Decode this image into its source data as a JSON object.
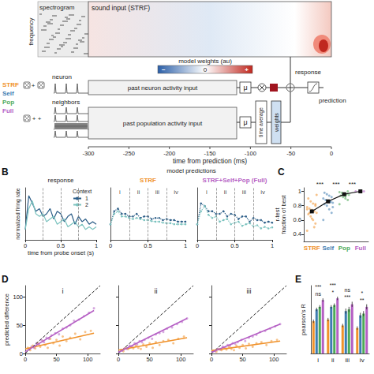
{
  "diagram": {
    "spectrogram": "spectrogram",
    "frequency": "frequency",
    "sound_input": "sound input (STRF)",
    "colorbar": {
      "title": "model weights (au)",
      "labels": [
        "−",
        "0",
        "+"
      ]
    },
    "models": [
      {
        "name": "STRF",
        "color": "#f0922b"
      },
      {
        "name": "Self",
        "color": "#3e7cb1"
      },
      {
        "name": "Pop",
        "color": "#4daa57"
      },
      {
        "name": "Full",
        "color": "#b55fc4"
      }
    ],
    "plus": "+",
    "neuron": "neuron",
    "neighbors": "neighbors",
    "neuron_input": "past neuron activity input",
    "population_input": "past population activity input",
    "mu": "μ",
    "time_average": "time average",
    "weights": "weights",
    "response": "response",
    "prediction": "prediction",
    "time_axis": {
      "title": "time from prediction (ms)",
      "lim": [
        -300,
        0
      ],
      "ticks": [
        -300,
        -250,
        -200,
        -150,
        -100,
        -50,
        0
      ]
    }
  },
  "chart_data": [
    {
      "type": "line",
      "panel": "B",
      "title": "response",
      "xlabel": "time from probe onset (s)",
      "ylabel": "normalized firing rate",
      "x": [
        0,
        0.05,
        0.1,
        0.15,
        0.2,
        0.25,
        0.3,
        0.35,
        0.4,
        0.45,
        0.5,
        0.55,
        0.6,
        0.65,
        0.7,
        0.75,
        0.8,
        0.85,
        0.9,
        0.95,
        1
      ],
      "series": [
        {
          "name": "1",
          "color": "#2b5d87",
          "values": [
            0.2,
            0.85,
            0.7,
            0.55,
            0.6,
            0.45,
            0.5,
            0.6,
            0.4,
            0.55,
            0.5,
            0.35,
            0.45,
            0.5,
            0.3,
            0.45,
            0.35,
            0.4,
            0.3,
            0.35,
            0.3
          ]
        },
        {
          "name": "2",
          "color": "#7cc3bf",
          "values": [
            0.2,
            0.6,
            0.75,
            0.5,
            0.45,
            0.5,
            0.35,
            0.4,
            0.45,
            0.3,
            0.35,
            0.4,
            0.25,
            0.3,
            0.35,
            0.25,
            0.3,
            0.2,
            0.25,
            0.2,
            0.25
          ]
        }
      ],
      "legend": "upper right",
      "legend_title": "Context",
      "segment_bounds": [
        0.25,
        0.5,
        0.75
      ],
      "xlim": [
        0,
        1
      ],
      "xticks": [
        0,
        0.5,
        1
      ],
      "ylim": [
        0,
        1
      ],
      "tick_labels": "x"
    },
    {
      "type": "line",
      "supertitle": "model predictions",
      "title": "STRF",
      "color": "#f0922b",
      "x": [
        0,
        0.05,
        0.1,
        0.15,
        0.2,
        0.25,
        0.3,
        0.35,
        0.4,
        0.45,
        0.5,
        0.55,
        0.6,
        0.65,
        0.7,
        0.75,
        0.8,
        0.85,
        0.9,
        0.95,
        1
      ],
      "series": [
        {
          "color": "#2b5d87",
          "line_style": "dotted",
          "marker": "circle",
          "values": [
            0.3,
            0.55,
            0.6,
            0.5,
            0.5,
            0.45,
            0.45,
            0.5,
            0.42,
            0.45,
            0.45,
            0.4,
            0.42,
            0.42,
            0.38,
            0.4,
            0.38,
            0.38,
            0.35,
            0.35,
            0.35
          ]
        },
        {
          "color": "#7cc3bf",
          "line_style": "dotted",
          "marker": "circle",
          "values": [
            0.3,
            0.5,
            0.55,
            0.45,
            0.45,
            0.42,
            0.4,
            0.42,
            0.4,
            0.38,
            0.38,
            0.36,
            0.35,
            0.35,
            0.33,
            0.32,
            0.32,
            0.3,
            0.3,
            0.3,
            0.3
          ]
        }
      ],
      "segment_bounds": [
        0.25,
        0.5,
        0.75
      ],
      "segment_labels": [
        "i",
        "ii",
        "iii",
        "iv"
      ],
      "xlim": [
        0,
        1
      ],
      "xticks": [
        0,
        0.5,
        1
      ],
      "ylim": [
        0,
        1
      ],
      "tick_labels": "x"
    },
    {
      "type": "line",
      "title": "STRF+Self+Pop (Full)",
      "color": "#b55fc4",
      "x": [
        0,
        0.05,
        0.1,
        0.15,
        0.2,
        0.25,
        0.3,
        0.35,
        0.4,
        0.45,
        0.5,
        0.55,
        0.6,
        0.65,
        0.7,
        0.75,
        0.8,
        0.85,
        0.9,
        0.95,
        1
      ],
      "series": [
        {
          "color": "#2b5d87",
          "line_style": "dotted",
          "marker": "circle",
          "values": [
            0.3,
            0.7,
            0.65,
            0.55,
            0.55,
            0.5,
            0.5,
            0.55,
            0.45,
            0.5,
            0.48,
            0.4,
            0.45,
            0.45,
            0.35,
            0.42,
            0.38,
            0.38,
            0.33,
            0.35,
            0.33
          ]
        },
        {
          "color": "#7cc3bf",
          "line_style": "dotted",
          "marker": "circle",
          "values": [
            0.3,
            0.55,
            0.65,
            0.48,
            0.42,
            0.45,
            0.35,
            0.38,
            0.4,
            0.3,
            0.33,
            0.35,
            0.27,
            0.3,
            0.32,
            0.26,
            0.28,
            0.22,
            0.25,
            0.22,
            0.24
          ]
        }
      ],
      "segment_bounds": [
        0.25,
        0.5,
        0.75
      ],
      "segment_labels": [
        "i",
        "ii",
        "iii",
        "iv"
      ],
      "xlim": [
        0,
        1
      ],
      "xticks": [
        0,
        0.5,
        1
      ],
      "ylim": [
        0,
        1
      ],
      "tick_labels": "x"
    },
    {
      "type": "strip",
      "panel": "C",
      "ylabel": "r-test\nfraction of best",
      "categories": [
        "STRF",
        "Self",
        "Pop",
        "Full"
      ],
      "colors": [
        "#f0922b",
        "#3e7cb1",
        "#4daa57",
        "#b55fc4"
      ],
      "points": [
        [
          0.45,
          0.55,
          0.6,
          0.65,
          0.68,
          0.7,
          0.72,
          0.74,
          0.76,
          0.78,
          0.8,
          0.83,
          0.86,
          0.9,
          0.95,
          0.5,
          0.62,
          0.7,
          0.75,
          0.82
        ],
        [
          0.6,
          0.7,
          0.75,
          0.8,
          0.82,
          0.84,
          0.86,
          0.87,
          0.88,
          0.9,
          0.92,
          0.94,
          0.96,
          0.98,
          0.78,
          0.85
        ],
        [
          0.82,
          0.88,
          0.9,
          0.92,
          0.94,
          0.95,
          0.96,
          0.97,
          0.98,
          0.99,
          1,
          0.93,
          0.96
        ],
        [
          1,
          1,
          1,
          1
        ]
      ],
      "means": [
        0.72,
        0.86,
        0.96,
        1
      ],
      "annotations": [
        "***",
        "***",
        "***"
      ],
      "ylim": [
        0.3,
        1.05
      ],
      "yticks": [
        0.4,
        0.6,
        0.8,
        1
      ]
    },
    {
      "type": "scatter",
      "panel": "D",
      "title": "i",
      "ylabel": "predicted difference",
      "series": [
        {
          "color": "#f0922b",
          "x": [
            4,
            8,
            12,
            16,
            20,
            24,
            28,
            32,
            36,
            40,
            45,
            50,
            55,
            60,
            66,
            72,
            80,
            88,
            96,
            105
          ],
          "values": [
            10,
            6,
            14,
            9,
            18,
            12,
            22,
            15,
            10,
            26,
            18,
            24,
            14,
            30,
            22,
            28,
            35,
            25,
            38,
            40
          ],
          "fit": {
            "x": [
              0,
              110
            ],
            "values": [
              8,
              36
            ]
          }
        },
        {
          "color": "#b55fc4",
          "x": [
            6,
            10,
            14,
            18,
            22,
            26,
            30,
            34,
            38,
            42,
            48,
            54,
            60,
            66,
            72,
            78,
            86,
            94,
            102,
            110
          ],
          "values": [
            8,
            12,
            10,
            18,
            16,
            24,
            20,
            28,
            26,
            32,
            36,
            34,
            44,
            46,
            50,
            58,
            60,
            66,
            72,
            80
          ],
          "fit": {
            "x": [
              0,
              110
            ],
            "values": [
              3,
              76
            ]
          }
        }
      ],
      "reference_line": {
        "x": [
          0,
          120
        ],
        "values": [
          0,
          120
        ],
        "line_style": "dashed"
      },
      "xlim": [
        0,
        120
      ],
      "xticks": [
        0,
        50,
        100
      ],
      "ylim": [
        0,
        120
      ],
      "yticks": [
        0,
        50,
        100
      ]
    },
    {
      "type": "scatter",
      "title": "ii",
      "series": [
        {
          "color": "#f0922b",
          "x": [
            4,
            8,
            12,
            16,
            20,
            24,
            28,
            32,
            36,
            40,
            45,
            50,
            55,
            60,
            66,
            72,
            80,
            88,
            96,
            105
          ],
          "values": [
            6,
            4,
            10,
            8,
            12,
            9,
            14,
            10,
            8,
            16,
            12,
            18,
            10,
            20,
            15,
            22,
            24,
            18,
            26,
            30
          ],
          "fit": {
            "x": [
              0,
              110
            ],
            "values": [
              6,
              28
            ]
          }
        },
        {
          "color": "#b55fc4",
          "x": [
            6,
            10,
            14,
            18,
            22,
            26,
            30,
            34,
            38,
            42,
            48,
            54,
            60,
            66,
            72,
            78,
            86,
            94,
            102,
            110
          ],
          "values": [
            5,
            9,
            8,
            14,
            12,
            18,
            16,
            22,
            20,
            24,
            28,
            26,
            34,
            36,
            38,
            44,
            46,
            52,
            56,
            62
          ],
          "fit": {
            "x": [
              0,
              110
            ],
            "values": [
              2,
              62
            ]
          }
        }
      ],
      "reference_line": {
        "x": [
          0,
          120
        ],
        "values": [
          0,
          120
        ],
        "line_style": "dashed"
      },
      "xlim": [
        0,
        120
      ],
      "xticks": [
        0,
        50,
        100
      ],
      "ylim": [
        0,
        120
      ],
      "yticks": [
        0,
        50,
        100
      ],
      "tick_labels": "x"
    },
    {
      "type": "scatter",
      "title": "iii",
      "series": [
        {
          "color": "#f0922b",
          "x": [
            4,
            8,
            12,
            16,
            20,
            24,
            28,
            32,
            36,
            40,
            45,
            50,
            55,
            60,
            66,
            72,
            80,
            88,
            96,
            105
          ],
          "values": [
            5,
            3,
            8,
            6,
            10,
            7,
            12,
            8,
            6,
            14,
            10,
            15,
            9,
            17,
            12,
            18,
            20,
            15,
            22,
            24
          ],
          "fit": {
            "x": [
              0,
              110
            ],
            "values": [
              5,
              22
            ]
          }
        },
        {
          "color": "#b55fc4",
          "x": [
            6,
            10,
            14,
            18,
            22,
            26,
            30,
            34,
            38,
            42,
            48,
            54,
            60,
            66,
            72,
            78,
            86,
            94,
            102,
            110
          ],
          "values": [
            4,
            8,
            7,
            12,
            10,
            15,
            14,
            18,
            17,
            20,
            24,
            22,
            28,
            30,
            33,
            38,
            40,
            44,
            48,
            52
          ],
          "fit": {
            "x": [
              0,
              110
            ],
            "values": [
              2,
              52
            ]
          }
        }
      ],
      "reference_line": {
        "x": [
          0,
          120
        ],
        "values": [
          0,
          120
        ],
        "line_style": "dashed"
      },
      "xlim": [
        0,
        120
      ],
      "xticks": [
        0,
        50,
        100
      ],
      "ylim": [
        0,
        120
      ],
      "yticks": [
        0,
        50,
        100
      ],
      "tick_labels": "x"
    },
    {
      "type": "bar",
      "panel": "E",
      "ylabel": "pearson's R",
      "categories": [
        "i",
        "ii",
        "iii",
        "iv"
      ],
      "series": [
        {
          "color": "#f0922b",
          "values": [
            0.38,
            0.4,
            0.33,
            0.3
          ],
          "errors": [
            0.02,
            0.02,
            0.02,
            0.02
          ]
        },
        {
          "color": "#3e7cb1",
          "values": [
            0.52,
            0.55,
            0.5,
            0.45
          ],
          "errors": [
            0.02,
            0.02,
            0.03,
            0.03
          ]
        },
        {
          "color": "#4daa57",
          "values": [
            0.55,
            0.57,
            0.52,
            0.47
          ],
          "errors": [
            0.02,
            0.02,
            0.03,
            0.03
          ]
        },
        {
          "color": "#b55fc4",
          "values": [
            0.63,
            0.65,
            0.58,
            0.55
          ],
          "errors": [
            0.02,
            0.02,
            0.03,
            0.03
          ]
        }
      ],
      "annotations": [
        [
          "***",
          "ns"
        ],
        [
          "***",
          "*"
        ],
        [
          "ns",
          "***"
        ],
        [
          "*",
          "**"
        ]
      ],
      "ylim": [
        0,
        0.8
      ],
      "tick_labels": "x"
    }
  ]
}
